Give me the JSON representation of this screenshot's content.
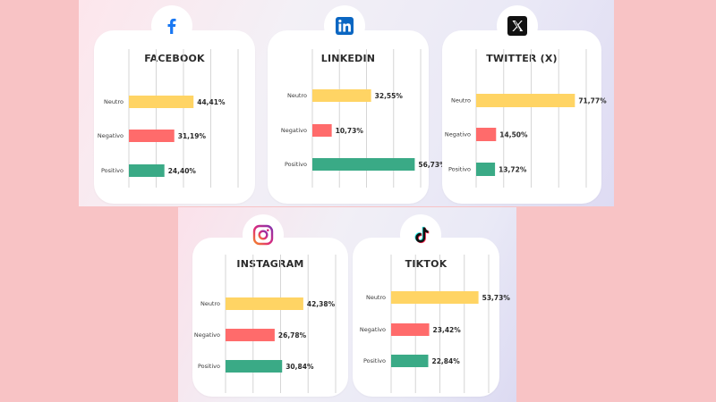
{
  "colors": {
    "neutro": "#ffd464",
    "negativo": "#ff6b6b",
    "positivo": "#3aaa86",
    "grid": "#d6d6d6"
  },
  "chart_data": [
    {
      "type": "bar",
      "title": "FACEBOOK",
      "icon": "facebook-icon",
      "categories": [
        "Neutro",
        "Negativo",
        "Positivo"
      ],
      "values": [
        44.41,
        31.19,
        24.4
      ],
      "labels": [
        "44,41%",
        "31,19%",
        "24,40%"
      ],
      "xlim": [
        0,
        75
      ],
      "grid": true
    },
    {
      "type": "bar",
      "title": "LINKEDIN",
      "icon": "linkedin-icon",
      "categories": [
        "Neutro",
        "Negativo",
        "Positivo"
      ],
      "values": [
        32.55,
        10.73,
        56.73
      ],
      "labels": [
        "32,55%",
        "10,73%",
        "56,73%"
      ],
      "xlim": [
        0,
        60
      ],
      "grid": true
    },
    {
      "type": "bar",
      "title": "TWITTER (X)",
      "icon": "x-icon",
      "categories": [
        "Neutro",
        "Negativo",
        "Positivo"
      ],
      "values": [
        71.77,
        14.5,
        13.72
      ],
      "labels": [
        "71,77%",
        "14,50%",
        "13,72%"
      ],
      "xlim": [
        0,
        80
      ],
      "grid": true
    },
    {
      "type": "bar",
      "title": "INSTAGRAM",
      "icon": "instagram-icon",
      "categories": [
        "Neutro",
        "Negativo",
        "Positivo"
      ],
      "values": [
        42.38,
        26.78,
        30.84
      ],
      "labels": [
        "42,38%",
        "26,78%",
        "30,84%"
      ],
      "xlim": [
        0,
        60
      ],
      "grid": true
    },
    {
      "type": "bar",
      "title": "TIKTOK",
      "icon": "tiktok-icon",
      "categories": [
        "Neutro",
        "Negativo",
        "Positivo"
      ],
      "values": [
        53.73,
        23.42,
        22.84
      ],
      "labels": [
        "53,73%",
        "23,42%",
        "22,84%"
      ],
      "xlim": [
        0,
        60
      ],
      "grid": true
    }
  ]
}
